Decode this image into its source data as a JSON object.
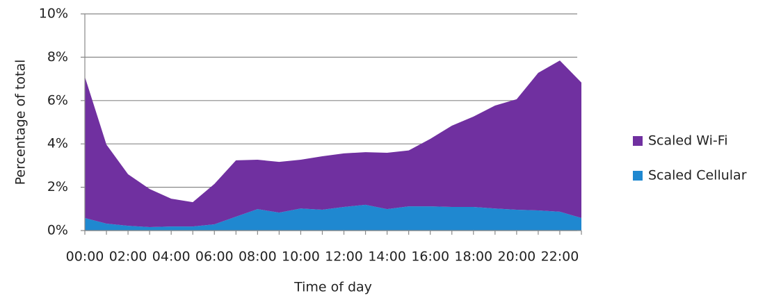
{
  "chart_data": {
    "type": "stacked_area",
    "x_label": "Time of day",
    "y_label": "Percentage of total",
    "categories": [
      "00:00",
      null,
      "02:00",
      null,
      "04:00",
      null,
      "06:00",
      null,
      "08:00",
      null,
      "10:00",
      null,
      "12:00",
      null,
      "14:00",
      null,
      "16:00",
      null,
      "18:00",
      null,
      "20:00",
      null,
      "22:00",
      null
    ],
    "series": [
      {
        "name": "Scaled Cellular",
        "color": "#1f88d0",
        "values": [
          0.58,
          0.32,
          0.22,
          0.16,
          0.19,
          0.19,
          0.29,
          0.64,
          0.99,
          0.83,
          1.02,
          0.96,
          1.09,
          1.19,
          0.99,
          1.12,
          1.12,
          1.09,
          1.09,
          1.02,
          0.96,
          0.93,
          0.87,
          0.58
        ]
      },
      {
        "name": "Scaled Wi-Fi",
        "color": "#7030a0",
        "values": [
          6.52,
          3.65,
          2.38,
          1.76,
          1.28,
          1.12,
          1.86,
          2.6,
          2.28,
          2.34,
          2.25,
          2.47,
          2.47,
          2.43,
          2.6,
          2.58,
          3.11,
          3.75,
          4.17,
          4.75,
          5.1,
          6.35,
          6.98,
          6.25
        ]
      }
    ],
    "ylim": [
      0,
      10
    ],
    "yticks": [
      {
        "value": 0,
        "label": "0%"
      },
      {
        "value": 2,
        "label": "2%"
      },
      {
        "value": 4,
        "label": "4%"
      },
      {
        "value": 6,
        "label": "6%"
      },
      {
        "value": 8,
        "label": "8%"
      },
      {
        "value": 10,
        "label": "10%"
      }
    ],
    "grid": true,
    "legend": "right"
  }
}
